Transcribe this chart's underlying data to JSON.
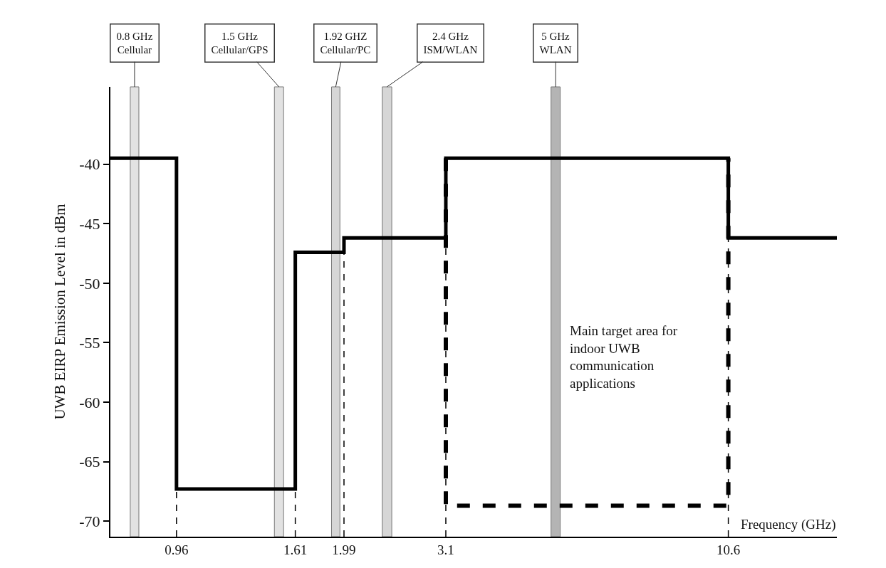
{
  "chart_data": {
    "type": "step",
    "xlabel": "Frequency (GHz)",
    "ylabel": "UWB EIRP Emission Level in dBm",
    "log": "x",
    "xlim": [
      0.72,
      17
    ],
    "xticks": [
      0.96,
      1.61,
      1.99,
      3.1,
      10.6
    ],
    "ylim": [
      -71.3,
      -33.5
    ],
    "yticks": [
      -70,
      -65,
      -60,
      -55,
      -50,
      -45,
      -40
    ],
    "series": [
      {
        "type": "step",
        "color": "#000000",
        "x": [
          0.72,
          0.96,
          1.61,
          1.99,
          3.1,
          10.6,
          17
        ],
        "values": [
          -39.5,
          -67.3,
          -47.4,
          -46.2,
          -39.5,
          -46.2,
          -46.2
        ]
      },
      {
        "type": "line",
        "color": "#000000",
        "line_style": "dashed",
        "x": [
          3.1,
          3.1,
          10.6,
          10.6
        ],
        "values": [
          -39.5,
          -68.7,
          -68.7,
          -39.5
        ]
      }
    ],
    "ref_lines": [
      {
        "axis": "x",
        "value": 0.96,
        "line_style": "dashed",
        "color": "#000000"
      },
      {
        "axis": "x",
        "value": 1.61,
        "line_style": "dashed",
        "color": "#000000"
      },
      {
        "axis": "x",
        "value": 1.99,
        "line_style": "dashed",
        "color": "#000000"
      },
      {
        "axis": "x",
        "value": 3.1,
        "line_style": "dashed",
        "color": "#000000"
      },
      {
        "axis": "x",
        "value": 10.6,
        "line_style": "dashed",
        "color": "#000000"
      }
    ],
    "bands": [
      {
        "axis": "x",
        "from": 0.785,
        "to": 0.815,
        "label": "0.8 GHz\nCellular",
        "color": "#e2e2e2"
      },
      {
        "axis": "x",
        "from": 1.47,
        "to": 1.53,
        "label": "1.5 GHz\nCellular/GPS",
        "color": "#e2e2e2"
      },
      {
        "axis": "x",
        "from": 1.885,
        "to": 1.955,
        "label": "1.92 GHZ\nCellular/PC",
        "color": "#d6d6d6"
      },
      {
        "axis": "x",
        "from": 2.35,
        "to": 2.45,
        "label": "2.4 GHz\nISM/WLAN",
        "color": "#d6d6d6"
      },
      {
        "axis": "x",
        "from": 4.9,
        "to": 5.1,
        "label": "5 GHz\nWLAN",
        "color": "#b4b4b4"
      }
    ],
    "annotations": [
      "Main target area for\nindoor UWB\ncommunication\napplications"
    ]
  }
}
